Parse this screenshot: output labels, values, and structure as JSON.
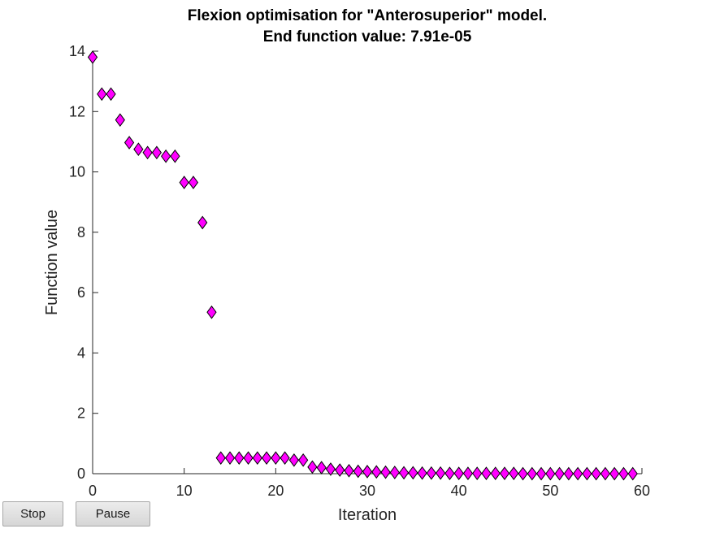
{
  "chart_data": {
    "type": "scatter",
    "title": [
      "Flexion optimisation for \"Anterosuperior\" model.",
      "End function value: 7.91e-05"
    ],
    "xlabel": "Iteration",
    "ylabel": "Function value",
    "xlim": [
      0,
      60
    ],
    "ylim": [
      0,
      14
    ],
    "xticks": [
      0,
      10,
      20,
      30,
      40,
      50,
      60
    ],
    "yticks": [
      0,
      2,
      4,
      6,
      8,
      10,
      12,
      14
    ],
    "grid": false,
    "marker": "diamond",
    "marker_color": "#ff00ff",
    "marker_edge_color": "#000000",
    "x": [
      0,
      1,
      2,
      3,
      4,
      5,
      6,
      7,
      8,
      9,
      10,
      11,
      12,
      13,
      14,
      15,
      16,
      17,
      18,
      19,
      20,
      21,
      22,
      23,
      24,
      25,
      26,
      27,
      28,
      29,
      30,
      31,
      32,
      33,
      34,
      35,
      36,
      37,
      38,
      39,
      40,
      41,
      42,
      43,
      44,
      45,
      46,
      47,
      48,
      49,
      50,
      51,
      52,
      53,
      54,
      55,
      56,
      57,
      58,
      59
    ],
    "y": [
      13.8,
      12.58,
      12.58,
      11.72,
      10.97,
      10.75,
      10.64,
      10.64,
      10.52,
      10.52,
      9.65,
      9.65,
      8.32,
      5.35,
      0.52,
      0.52,
      0.52,
      0.52,
      0.52,
      0.52,
      0.52,
      0.52,
      0.45,
      0.45,
      0.22,
      0.2,
      0.15,
      0.12,
      0.1,
      0.08,
      0.07,
      0.06,
      0.05,
      0.04,
      0.03,
      0.03,
      0.02,
      0.02,
      0.02,
      0.01,
      0.01,
      0.01,
      0.01,
      0.01,
      0.01,
      0.01,
      0.01,
      0.0,
      0.0,
      0.0,
      0.0,
      0.0,
      0.0,
      0.0,
      0.0,
      0.0,
      0.0,
      0.0,
      0.0,
      0.0
    ]
  },
  "controls": {
    "stop_label": "Stop",
    "pause_label": "Pause"
  }
}
